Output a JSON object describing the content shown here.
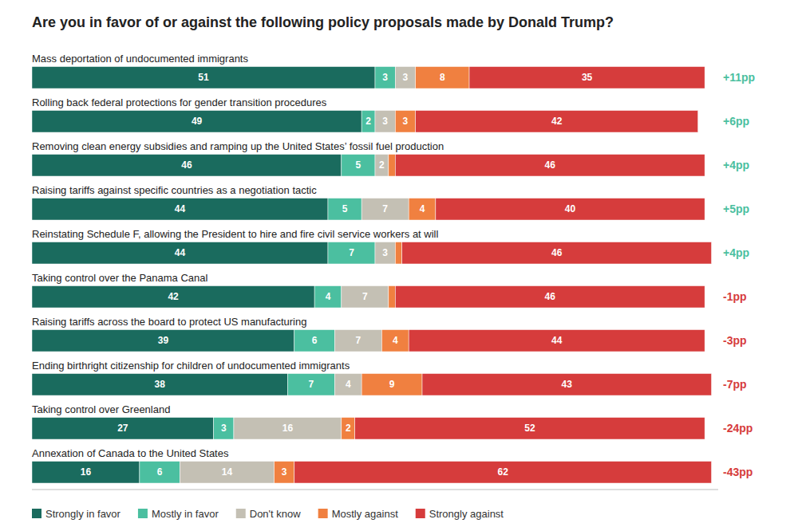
{
  "chart_data": {
    "type": "bar",
    "orientation": "horizontal",
    "stacked": true,
    "data_labels": true,
    "tick_labels": false,
    "grid": false,
    "legend": "lower left",
    "title": "Are you in favor of or against the following policy proposals made by Donald Trump?",
    "categories": [
      "Mass deportation of undocumented immigrants",
      "Rolling back federal protections for gender transition procedures",
      "Removing clean energy subsidies and ramping up the United States’ fossil fuel production",
      "Raising tariffs against specific countries as a negotiation tactic",
      "Reinstating Schedule F, allowing the President to hire and fire civil service workers at will",
      "Taking control over the Panama Canal",
      "Raising tariffs across the board to protect US manufacturing",
      "Ending birthright citizenship for children of undocumented immigrants",
      "Taking control over Greenland",
      "Annexation of Canada to the United States"
    ],
    "series": [
      {
        "name": "Strongly in favor",
        "color": "#1a6b5e",
        "values": [
          51,
          49,
          46,
          44,
          44,
          42,
          39,
          38,
          27,
          16
        ]
      },
      {
        "name": "Mostly in favor",
        "color": "#4bbfa0",
        "values": [
          3,
          2,
          5,
          5,
          7,
          4,
          6,
          7,
          3,
          6
        ]
      },
      {
        "name": "Don't know",
        "color": "#c4c0b4",
        "values": [
          3,
          3,
          2,
          7,
          3,
          7,
          7,
          4,
          16,
          14
        ]
      },
      {
        "name": "Mostly against",
        "color": "#f08040",
        "values": [
          8,
          3,
          1,
          4,
          1,
          1,
          4,
          9,
          2,
          3
        ],
        "value_labels": [
          "8",
          "3",
          null,
          "4",
          null,
          null,
          "4",
          "9",
          "2",
          "3"
        ]
      },
      {
        "name": "Strongly against",
        "color": "#d63c3c",
        "values": [
          35,
          42,
          46,
          40,
          46,
          46,
          44,
          43,
          52,
          62
        ]
      }
    ],
    "annotations": [
      {
        "text": "+11pp",
        "color": "#4bbfa0"
      },
      {
        "text": "+6pp",
        "color": "#4bbfa0"
      },
      {
        "text": "+4pp",
        "color": "#4bbfa0"
      },
      {
        "text": "+5pp",
        "color": "#4bbfa0"
      },
      {
        "text": "+4pp",
        "color": "#4bbfa0"
      },
      {
        "text": "-1pp",
        "color": "#d63c3c"
      },
      {
        "text": "-3pp",
        "color": "#d63c3c"
      },
      {
        "text": "-7pp",
        "color": "#d63c3c"
      },
      {
        "text": "-24pp",
        "color": "#d63c3c"
      },
      {
        "text": "-43pp",
        "color": "#d63c3c"
      }
    ],
    "xlim": [
      0,
      102
    ]
  }
}
